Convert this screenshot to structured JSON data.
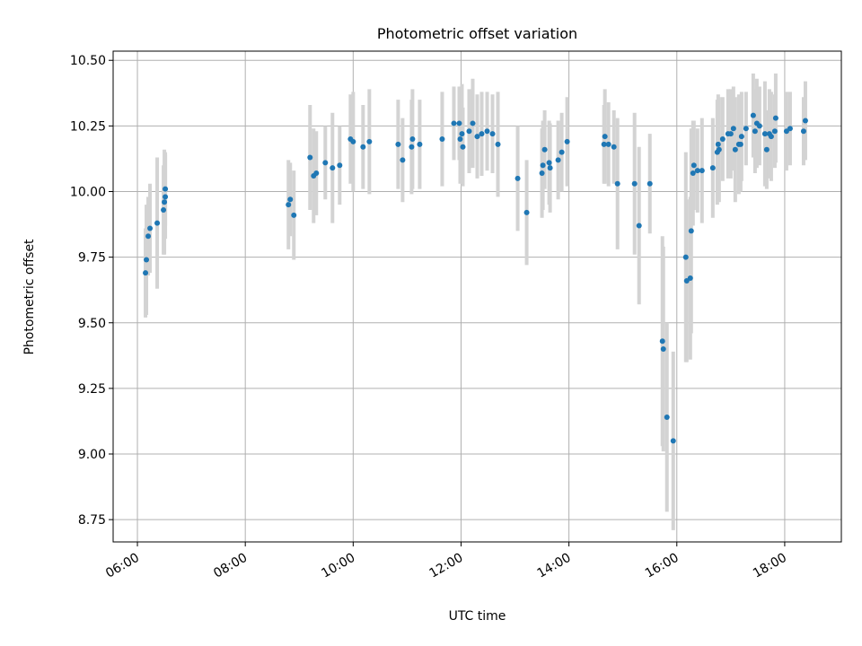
{
  "chart_data": {
    "type": "scatter",
    "title": "Photometric offset variation",
    "xlabel": "UTC time",
    "ylabel": "Photometric offset",
    "x_tick_labels": [
      "06:00",
      "08:00",
      "10:00",
      "12:00",
      "14:00",
      "16:00",
      "18:00"
    ],
    "y_tick_labels": [
      "8.75",
      "9.00",
      "9.25",
      "9.50",
      "9.75",
      "10.00",
      "10.25",
      "10.50"
    ],
    "x_ticks_hours": [
      6,
      8,
      10,
      12,
      14,
      16,
      18
    ],
    "y_ticks": [
      8.75,
      9.0,
      9.25,
      9.5,
      9.75,
      10.0,
      10.25,
      10.5
    ],
    "xlim_hours": [
      5.55,
      19.05
    ],
    "ylim": [
      8.665,
      10.535
    ],
    "grid": true,
    "colors": {
      "points": "#1f77b4",
      "errorbars": "#d3d3d3",
      "grid": "#b0b0b0"
    },
    "points": [
      {
        "t": "06:09",
        "y": 9.69,
        "err": 0.17
      },
      {
        "t": "06:10",
        "y": 9.74,
        "err": 0.21
      },
      {
        "t": "06:12",
        "y": 9.83,
        "err": 0.15
      },
      {
        "t": "06:14",
        "y": 9.86,
        "err": 0.17
      },
      {
        "t": "06:22",
        "y": 9.88,
        "err": 0.25
      },
      {
        "t": "06:29",
        "y": 9.93,
        "err": 0.17
      },
      {
        "t": "06:30",
        "y": 9.96,
        "err": 0.2
      },
      {
        "t": "06:31",
        "y": 9.98,
        "err": 0.16
      },
      {
        "t": "06:31",
        "y": 10.01,
        "err": 0.14
      },
      {
        "t": "08:48",
        "y": 9.95,
        "err": 0.17
      },
      {
        "t": "08:50",
        "y": 9.97,
        "err": 0.14
      },
      {
        "t": "08:54",
        "y": 9.91,
        "err": 0.17
      },
      {
        "t": "09:12",
        "y": 10.13,
        "err": 0.2
      },
      {
        "t": "09:16",
        "y": 10.06,
        "err": 0.18
      },
      {
        "t": "09:19",
        "y": 10.07,
        "err": 0.16
      },
      {
        "t": "09:29",
        "y": 10.11,
        "err": 0.14
      },
      {
        "t": "09:37",
        "y": 10.09,
        "err": 0.21
      },
      {
        "t": "09:45",
        "y": 10.1,
        "err": 0.15
      },
      {
        "t": "09:57",
        "y": 10.2,
        "err": 0.17
      },
      {
        "t": "10:00",
        "y": 10.19,
        "err": 0.19
      },
      {
        "t": "10:11",
        "y": 10.17,
        "err": 0.16
      },
      {
        "t": "10:18",
        "y": 10.19,
        "err": 0.2
      },
      {
        "t": "10:50",
        "y": 10.18,
        "err": 0.17
      },
      {
        "t": "10:55",
        "y": 10.12,
        "err": 0.16
      },
      {
        "t": "11:05",
        "y": 10.17,
        "err": 0.18
      },
      {
        "t": "11:06",
        "y": 10.2,
        "err": 0.19
      },
      {
        "t": "11:14",
        "y": 10.18,
        "err": 0.17
      },
      {
        "t": "11:39",
        "y": 10.2,
        "err": 0.18
      },
      {
        "t": "11:52",
        "y": 10.26,
        "err": 0.14
      },
      {
        "t": "11:58",
        "y": 10.26,
        "err": 0.14
      },
      {
        "t": "11:59",
        "y": 10.2,
        "err": 0.17
      },
      {
        "t": "12:01",
        "y": 10.22,
        "err": 0.19
      },
      {
        "t": "12:02",
        "y": 10.17,
        "err": 0.15
      },
      {
        "t": "12:09",
        "y": 10.23,
        "err": 0.16
      },
      {
        "t": "12:13",
        "y": 10.26,
        "err": 0.17
      },
      {
        "t": "12:18",
        "y": 10.21,
        "err": 0.16
      },
      {
        "t": "12:23",
        "y": 10.22,
        "err": 0.16
      },
      {
        "t": "12:29",
        "y": 10.23,
        "err": 0.15
      },
      {
        "t": "12:35",
        "y": 10.22,
        "err": 0.15
      },
      {
        "t": "12:41",
        "y": 10.18,
        "err": 0.2
      },
      {
        "t": "13:03",
        "y": 10.05,
        "err": 0.2
      },
      {
        "t": "13:13",
        "y": 9.92,
        "err": 0.2
      },
      {
        "t": "13:30",
        "y": 10.07,
        "err": 0.17
      },
      {
        "t": "13:31",
        "y": 10.1,
        "err": 0.17
      },
      {
        "t": "13:33",
        "y": 10.16,
        "err": 0.15
      },
      {
        "t": "13:38",
        "y": 10.11,
        "err": 0.16
      },
      {
        "t": "13:39",
        "y": 10.09,
        "err": 0.17
      },
      {
        "t": "13:48",
        "y": 10.12,
        "err": 0.15
      },
      {
        "t": "13:52",
        "y": 10.15,
        "err": 0.15
      },
      {
        "t": "13:58",
        "y": 10.19,
        "err": 0.17
      },
      {
        "t": "14:39",
        "y": 10.18,
        "err": 0.15
      },
      {
        "t": "14:40",
        "y": 10.21,
        "err": 0.18
      },
      {
        "t": "14:44",
        "y": 10.18,
        "err": 0.16
      },
      {
        "t": "14:50",
        "y": 10.17,
        "err": 0.14
      },
      {
        "t": "14:54",
        "y": 10.03,
        "err": 0.25
      },
      {
        "t": "15:13",
        "y": 10.03,
        "err": 0.27
      },
      {
        "t": "15:18",
        "y": 9.87,
        "err": 0.3
      },
      {
        "t": "15:30",
        "y": 10.03,
        "err": 0.19
      },
      {
        "t": "15:44",
        "y": 9.43,
        "err": 0.4
      },
      {
        "t": "15:45",
        "y": 9.4,
        "err": 0.39
      },
      {
        "t": "15:49",
        "y": 9.14,
        "err": 0.36
      },
      {
        "t": "15:56",
        "y": 9.05,
        "err": 0.34
      },
      {
        "t": "16:10",
        "y": 9.75,
        "err": 0.4
      },
      {
        "t": "16:11",
        "y": 9.66,
        "err": 0.31
      },
      {
        "t": "16:15",
        "y": 9.67,
        "err": 0.31
      },
      {
        "t": "16:16",
        "y": 9.85,
        "err": 0.39
      },
      {
        "t": "16:18",
        "y": 10.07,
        "err": 0.2
      },
      {
        "t": "16:19",
        "y": 10.1,
        "err": 0.17
      },
      {
        "t": "16:23",
        "y": 10.08,
        "err": 0.16
      },
      {
        "t": "16:28",
        "y": 10.08,
        "err": 0.2
      },
      {
        "t": "16:40",
        "y": 10.09,
        "err": 0.19
      },
      {
        "t": "16:45",
        "y": 10.15,
        "err": 0.2
      },
      {
        "t": "16:46",
        "y": 10.18,
        "err": 0.19
      },
      {
        "t": "16:47",
        "y": 10.16,
        "err": 0.2
      },
      {
        "t": "16:51",
        "y": 10.2,
        "err": 0.16
      },
      {
        "t": "16:57",
        "y": 10.22,
        "err": 0.17
      },
      {
        "t": "17:00",
        "y": 10.22,
        "err": 0.17
      },
      {
        "t": "17:03",
        "y": 10.24,
        "err": 0.16
      },
      {
        "t": "17:05",
        "y": 10.16,
        "err": 0.2
      },
      {
        "t": "17:09",
        "y": 10.18,
        "err": 0.19
      },
      {
        "t": "17:11",
        "y": 10.18,
        "err": 0.18
      },
      {
        "t": "17:12",
        "y": 10.21,
        "err": 0.17
      },
      {
        "t": "17:17",
        "y": 10.24,
        "err": 0.14
      },
      {
        "t": "17:25",
        "y": 10.29,
        "err": 0.16
      },
      {
        "t": "17:27",
        "y": 10.23,
        "err": 0.16
      },
      {
        "t": "17:29",
        "y": 10.26,
        "err": 0.17
      },
      {
        "t": "17:32",
        "y": 10.25,
        "err": 0.15
      },
      {
        "t": "17:38",
        "y": 10.22,
        "err": 0.2
      },
      {
        "t": "17:40",
        "y": 10.16,
        "err": 0.15
      },
      {
        "t": "17:43",
        "y": 10.22,
        "err": 0.17
      },
      {
        "t": "17:45",
        "y": 10.21,
        "err": 0.17
      },
      {
        "t": "17:49",
        "y": 10.23,
        "err": 0.14
      },
      {
        "t": "17:50",
        "y": 10.28,
        "err": 0.17
      },
      {
        "t": "18:02",
        "y": 10.23,
        "err": 0.15
      },
      {
        "t": "18:06",
        "y": 10.24,
        "err": 0.14
      },
      {
        "t": "18:21",
        "y": 10.23,
        "err": 0.13
      },
      {
        "t": "18:23",
        "y": 10.27,
        "err": 0.15
      }
    ]
  }
}
